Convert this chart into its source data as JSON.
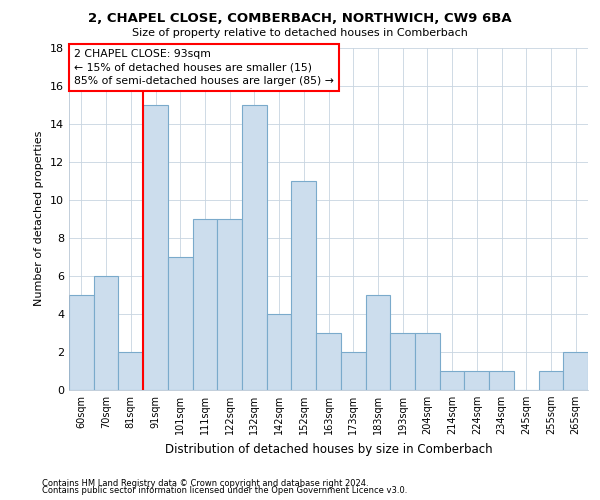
{
  "title1": "2, CHAPEL CLOSE, COMBERBACH, NORTHWICH, CW9 6BA",
  "title2": "Size of property relative to detached houses in Comberbach",
  "xlabel": "Distribution of detached houses by size in Comberbach",
  "ylabel": "Number of detached properties",
  "footnote1": "Contains HM Land Registry data © Crown copyright and database right 2024.",
  "footnote2": "Contains public sector information licensed under the Open Government Licence v3.0.",
  "annotation_line1": "2 CHAPEL CLOSE: 93sqm",
  "annotation_line2": "← 15% of detached houses are smaller (15)",
  "annotation_line3": "85% of semi-detached houses are larger (85) →",
  "categories": [
    "60sqm",
    "70sqm",
    "81sqm",
    "91sqm",
    "101sqm",
    "111sqm",
    "122sqm",
    "132sqm",
    "142sqm",
    "152sqm",
    "163sqm",
    "173sqm",
    "183sqm",
    "193sqm",
    "204sqm",
    "214sqm",
    "224sqm",
    "234sqm",
    "245sqm",
    "255sqm",
    "265sqm"
  ],
  "values": [
    5,
    6,
    2,
    15,
    7,
    9,
    9,
    15,
    4,
    11,
    3,
    2,
    5,
    3,
    3,
    1,
    1,
    1,
    0,
    1,
    2
  ],
  "bar_color": "#ccdded",
  "bar_edge_color": "#7aaacb",
  "red_line_x": 2.5,
  "ylim": [
    0,
    18
  ],
  "yticks": [
    0,
    2,
    4,
    6,
    8,
    10,
    12,
    14,
    16,
    18
  ],
  "background_color": "#ffffff",
  "grid_color": "#c8d4e0"
}
